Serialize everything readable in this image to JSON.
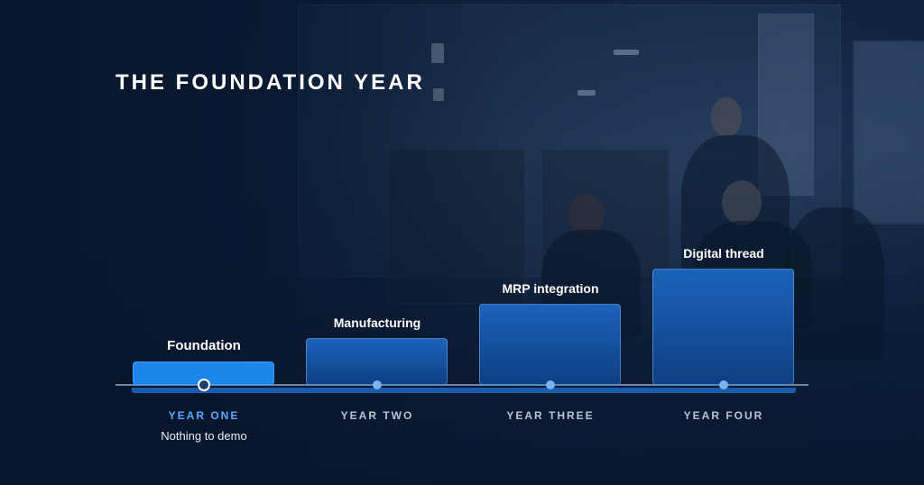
{
  "title": "THE FOUNDATION YEAR",
  "colors": {
    "accent": "#1e86ea",
    "active_year": "#5aa9ff",
    "bar": "#1b62bb",
    "background": "#0b1d36"
  },
  "stages": [
    {
      "label": "Foundation",
      "year": "YEAR ONE",
      "note": "Nothing to demo",
      "active": true
    },
    {
      "label": "Manufacturing",
      "year": "YEAR TWO",
      "active": false
    },
    {
      "label": "MRP integration",
      "year": "YEAR THREE",
      "active": false
    },
    {
      "label": "Digital thread",
      "year": "YEAR FOUR",
      "active": false
    }
  ]
}
